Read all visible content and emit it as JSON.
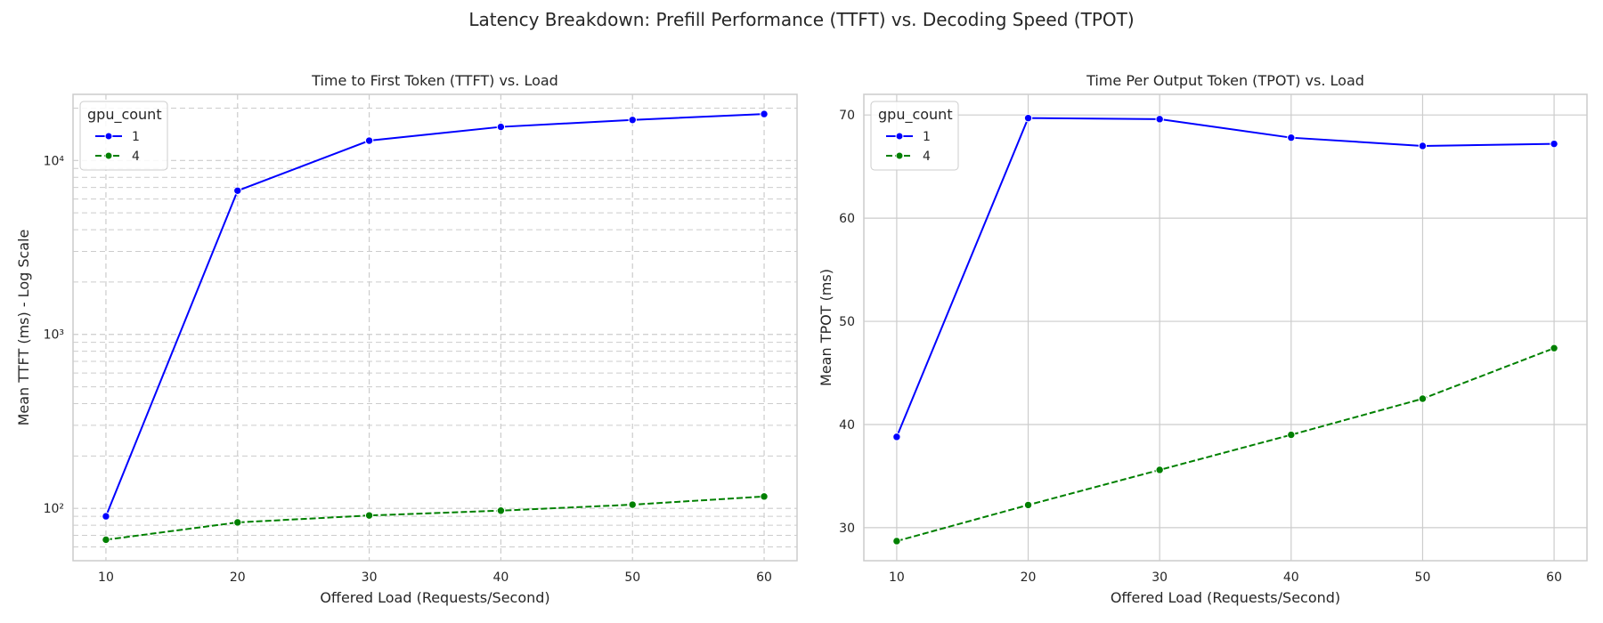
{
  "figure": {
    "title": "Latency Breakdown: Prefill Performance (TTFT) vs. Decoding Speed (TPOT)"
  },
  "colors": {
    "series_1": "#0000ff",
    "series_4": "#008000",
    "grid": "#cccccc",
    "axes_edge": "#cccccc"
  },
  "chart_data": [
    {
      "type": "line",
      "title": "Time to First Token (TTFT) vs. Load",
      "xlabel": "Offered Load (Requests/Second)",
      "ylabel": "Mean TTFT (ms) - Log Scale",
      "yscale": "log",
      "xlim": [
        7.5,
        62.5
      ],
      "ylim": [
        50,
        24000
      ],
      "xticks": [
        10,
        20,
        30,
        40,
        50,
        60
      ],
      "yticks_major": [
        100,
        1000,
        10000
      ],
      "ytick_labels": [
        "10²",
        "10³",
        "10⁴"
      ],
      "grid": true,
      "grid_style": "dashed, major and minor",
      "legend": {
        "title": "gpu_count",
        "placement": "top-left"
      },
      "x": [
        10,
        20,
        30,
        40,
        50,
        60
      ],
      "series": [
        {
          "name": "1",
          "color": "#0000ff",
          "linestyle": "solid",
          "marker": "circle",
          "values": [
            90,
            6700,
            13000,
            15600,
            17100,
            18500
          ]
        },
        {
          "name": "4",
          "color": "#008000",
          "linestyle": "dashed",
          "marker": "circle",
          "values": [
            66,
            83,
            91,
            97,
            105,
            117
          ]
        }
      ]
    },
    {
      "type": "line",
      "title": "Time Per Output Token (TPOT) vs. Load",
      "xlabel": "Offered Load (Requests/Second)",
      "ylabel": "Mean TPOT (ms)",
      "yscale": "linear",
      "xlim": [
        7.5,
        62.5
      ],
      "ylim": [
        26.8,
        72.0
      ],
      "xticks": [
        10,
        20,
        30,
        40,
        50,
        60
      ],
      "yticks_major": [
        30,
        40,
        50,
        60,
        70
      ],
      "ytick_labels": [
        "30",
        "40",
        "50",
        "60",
        "70"
      ],
      "grid": true,
      "grid_style": "solid, major",
      "legend": {
        "title": "gpu_count",
        "placement": "top-left"
      },
      "x": [
        10,
        20,
        30,
        40,
        50,
        60
      ],
      "series": [
        {
          "name": "1",
          "color": "#0000ff",
          "linestyle": "solid",
          "marker": "circle",
          "values": [
            38.8,
            69.7,
            69.6,
            67.8,
            67.0,
            67.2
          ]
        },
        {
          "name": "4",
          "color": "#008000",
          "linestyle": "dashed",
          "marker": "circle",
          "values": [
            28.7,
            32.2,
            35.6,
            39.0,
            42.5,
            47.4
          ]
        }
      ]
    }
  ]
}
